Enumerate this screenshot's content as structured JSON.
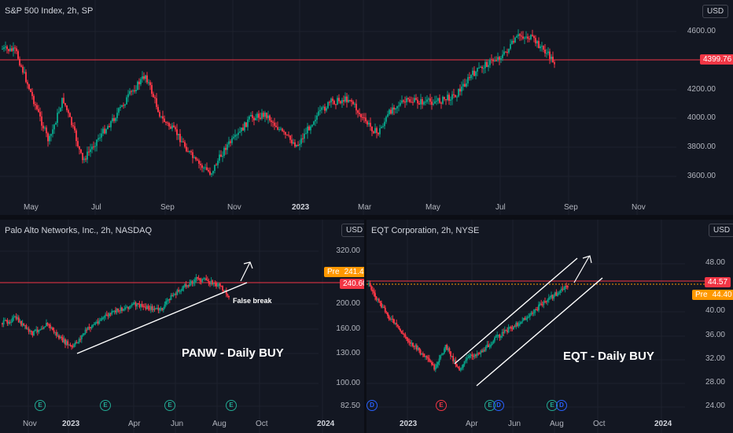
{
  "top": {
    "title": "S&P 500 Index, 2h, SP",
    "currency": "USD",
    "y_ticks": [
      "4600.00",
      "4400.00",
      "4200.00",
      "4000.00",
      "3800.00",
      "3600.00"
    ],
    "x_ticks": [
      "May",
      "Jul",
      "Sep",
      "Nov",
      "2023",
      "Mar",
      "May",
      "Jul",
      "Sep",
      "Nov"
    ],
    "last_price": "4399.76",
    "colors": {
      "up": "#089981",
      "down": "#f23645",
      "price_line": "#f23645"
    }
  },
  "panw": {
    "title": "Palo Alto Networks, Inc., 2h, NASDAQ",
    "currency": "USD",
    "y_ticks": [
      "320.00",
      "200.00",
      "160.00",
      "130.00",
      "100.00",
      "82.50"
    ],
    "x_ticks": [
      "Nov",
      "2023",
      "Apr",
      "Jun",
      "Aug",
      "Oct",
      "2024"
    ],
    "pre_label": "Pre",
    "pre_price": "241.41",
    "last_price": "240.60",
    "annotation_main": "PANW - Daily BUY",
    "annotation_break": "False break",
    "events": [
      "E",
      "E",
      "E",
      "E"
    ]
  },
  "eqt": {
    "title": "EQT Corporation, 2h, NYSE",
    "currency": "USD",
    "y_ticks": [
      "48.00",
      "40.00",
      "36.00",
      "32.00",
      "28.00",
      "24.00"
    ],
    "x_ticks": [
      "2023",
      "Apr",
      "Jun",
      "Aug",
      "Oct",
      "2024"
    ],
    "pre_label": "Pre",
    "pre_price": "44.40",
    "last_price": "44.57",
    "annotation_main": "EQT - Daily BUY",
    "events": [
      "D",
      "E",
      "E",
      "D",
      "E",
      "D"
    ]
  }
}
